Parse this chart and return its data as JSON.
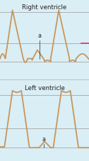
{
  "title_top": "Right ventricle",
  "title_bottom": "Left ventricle",
  "bg_color": "#daeef5",
  "line_color": "#c8965a",
  "line_width": 1.3,
  "grid_color": "#999999",
  "text_color": "#222222",
  "title_fontsize": 6.2,
  "annotation_fontsize": 5.8,
  "fig_bg": "#daeef5",
  "pink_color": "#e0306a"
}
